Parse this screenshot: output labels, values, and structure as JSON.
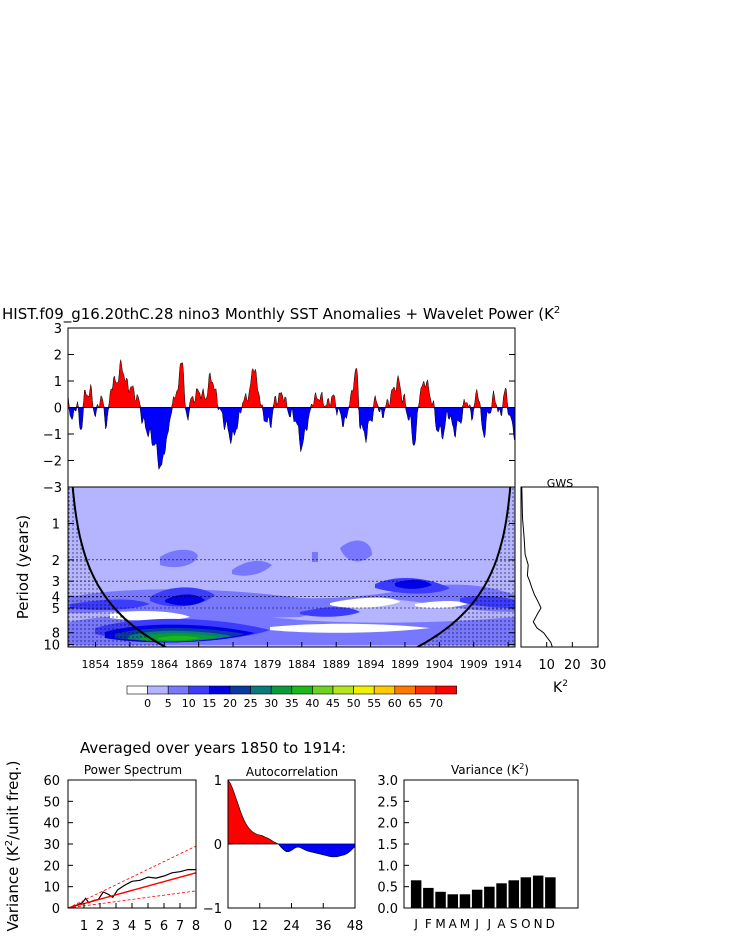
{
  "title": "HIST.f09_g16.20thC.28 nino3 Monthly SST Anomalies + Wavelet Power (K",
  "title_sup": "2",
  "subtitle": "Averaged over years 1850 to 1914:",
  "colors": {
    "pos": "#ff0000",
    "neg": "#0000ff"
  },
  "chart_data": [
    {
      "id": "timeseries",
      "type": "area",
      "ylim": [
        -3,
        3
      ],
      "yticks": [
        "3",
        "2",
        "1",
        "0",
        "−1",
        "−2",
        "−3"
      ],
      "x_range": [
        1850,
        1915
      ],
      "series_anchors": [
        [
          1850,
          0.3
        ],
        [
          1850.6,
          -0.5
        ],
        [
          1851.3,
          0.2
        ],
        [
          1851.8,
          -0.9
        ],
        [
          1852.5,
          0.5
        ],
        [
          1853.3,
          0.6
        ],
        [
          1854,
          -0.3
        ],
        [
          1854.8,
          0.4
        ],
        [
          1855.6,
          -0.6
        ],
        [
          1856.4,
          0.9
        ],
        [
          1857.1,
          1.0
        ],
        [
          1857.8,
          1.6
        ],
        [
          1858.5,
          0.9
        ],
        [
          1859.3,
          0.7
        ],
        [
          1860.2,
          0.3
        ],
        [
          1861,
          -0.6
        ],
        [
          1861.8,
          -1.0
        ],
        [
          1862.6,
          -1.4
        ],
        [
          1863.5,
          -2.3
        ],
        [
          1864.3,
          -1.3
        ],
        [
          1865.2,
          0.1
        ],
        [
          1866,
          0.8
        ],
        [
          1866.6,
          1.9
        ],
        [
          1867.2,
          -0.4
        ],
        [
          1868,
          0.3
        ],
        [
          1869,
          0.6
        ],
        [
          1870,
          0.4
        ],
        [
          1870.8,
          1.2
        ],
        [
          1871.5,
          0.5
        ],
        [
          1872.2,
          -0.2
        ],
        [
          1873,
          -0.7
        ],
        [
          1873.8,
          -1.2
        ],
        [
          1874.6,
          -0.7
        ],
        [
          1875.4,
          0.2
        ],
        [
          1876.3,
          0.5
        ],
        [
          1877,
          1.6
        ],
        [
          1877.7,
          0.6
        ],
        [
          1878.5,
          -0.4
        ],
        [
          1879.4,
          -0.6
        ],
        [
          1880.2,
          0.3
        ],
        [
          1881.2,
          0.5
        ],
        [
          1882.2,
          -0.2
        ],
        [
          1883,
          -0.4
        ],
        [
          1884,
          -1.5
        ],
        [
          1884.8,
          -0.6
        ],
        [
          1885.7,
          0.3
        ],
        [
          1886.6,
          0.4
        ],
        [
          1887.6,
          0.1
        ],
        [
          1888.5,
          0.4
        ],
        [
          1889.4,
          -0.2
        ],
        [
          1890.2,
          -0.6
        ],
        [
          1891.1,
          0.3
        ],
        [
          1891.9,
          1.5
        ],
        [
          1892.5,
          -0.6
        ],
        [
          1893.2,
          -1.1
        ],
        [
          1894,
          -0.5
        ],
        [
          1894.8,
          0.3
        ],
        [
          1895.6,
          -0.3
        ],
        [
          1896.4,
          0.1
        ],
        [
          1897.2,
          0.6
        ],
        [
          1898,
          1.0
        ],
        [
          1898.8,
          0.3
        ],
        [
          1899.6,
          -0.4
        ],
        [
          1900.4,
          -1.4
        ],
        [
          1901.2,
          0.6
        ],
        [
          1902,
          1.0
        ],
        [
          1902.9,
          0.3
        ],
        [
          1903.7,
          -0.8
        ],
        [
          1904.5,
          -1.0
        ],
        [
          1905.3,
          -0.2
        ],
        [
          1906.2,
          -0.9
        ],
        [
          1907,
          -0.5
        ],
        [
          1907.9,
          0.3
        ],
        [
          1908.7,
          -0.3
        ],
        [
          1909.6,
          0.6
        ],
        [
          1910.4,
          -1.0
        ],
        [
          1911.2,
          -0.2
        ],
        [
          1912,
          0.4
        ],
        [
          1912.8,
          -0.3
        ],
        [
          1913.6,
          0.6
        ],
        [
          1914.4,
          -0.5
        ],
        [
          1915,
          -1.0
        ]
      ]
    },
    {
      "id": "wavelet",
      "type": "heatmap",
      "ylabel": "Period (years)",
      "yticks": [
        "1",
        "2",
        "3",
        "4",
        "5",
        "8",
        "10"
      ],
      "ytick_values": [
        1,
        2,
        3,
        4,
        5,
        8,
        10
      ],
      "xticks": [
        "1854",
        "1859",
        "1864",
        "1869",
        "1874",
        "1879",
        "1884",
        "1889",
        "1894",
        "1899",
        "1904",
        "1909",
        "1914"
      ],
      "xtick_values": [
        1854,
        1859,
        1864,
        1869,
        1874,
        1879,
        1884,
        1889,
        1894,
        1899,
        1904,
        1909,
        1914
      ],
      "x_range": [
        1850,
        1915
      ],
      "period_range": [
        0.5,
        10.5
      ],
      "levels": [
        0,
        5,
        10,
        15,
        20,
        25,
        30,
        35,
        40,
        45,
        50,
        55,
        60,
        65,
        70
      ],
      "level_labels": [
        "0",
        "5",
        "10",
        "15",
        "20",
        "25",
        "30",
        "35",
        "40",
        "45",
        "50",
        "55",
        "60",
        "65",
        "70"
      ],
      "level_colors": [
        "#ffffff",
        "#b4b4ff",
        "#7878ff",
        "#3c3cff",
        "#0000e6",
        "#0a3aa0",
        "#0a7a7a",
        "#0a9a3a",
        "#1ab81a",
        "#6ed21e",
        "#b4e61e",
        "#f0f000",
        "#ffc800",
        "#ff7800",
        "#ff3000",
        "#ff0000"
      ]
    },
    {
      "id": "gws",
      "type": "line",
      "title": "GWS",
      "xlabel": "K",
      "xlabel_sup": "2",
      "xticks": [
        "10",
        "20",
        "30"
      ],
      "xlim": [
        0,
        30
      ],
      "period": [
        0.5,
        0.9,
        1.3,
        1.8,
        2.2,
        2.7,
        3.0,
        3.4,
        3.9,
        4.4,
        5.0,
        5.6,
        6.5,
        7.3,
        8.0,
        8.8,
        9.6,
        10.5
      ],
      "power": [
        0.3,
        0.6,
        1.2,
        1.6,
        2.8,
        2.5,
        3.4,
        4.2,
        5.3,
        6.6,
        7.8,
        6.4,
        4.8,
        6.2,
        8.8,
        10.2,
        11.6,
        12.2
      ]
    },
    {
      "id": "power_spectrum",
      "type": "line",
      "title": "Power Spectrum",
      "ylabel": "Variance (K",
      "ylabel_sup": "2",
      "ylabel_tail": "/unit freq.)",
      "xticks": [
        "1",
        "2",
        "3",
        "4",
        "5",
        "6",
        "7",
        "8"
      ],
      "yticks": [
        "60",
        "50",
        "40",
        "30",
        "20",
        "10",
        "0"
      ],
      "xlim": [
        0,
        8
      ],
      "ylim": [
        0,
        60
      ],
      "series": [
        {
          "x": [
            0.2,
            0.6,
            0.9,
            1.1,
            1.3,
            1.6,
            1.9,
            2.2,
            2.5,
            2.8,
            3.1,
            3.5,
            4,
            4.5,
            5,
            5.5,
            6,
            6.5,
            7,
            7.5,
            8
          ],
          "y": [
            0.5,
            1.5,
            2.5,
            4.5,
            2.5,
            3.5,
            4,
            7.5,
            6.5,
            5,
            8.5,
            10.5,
            12.5,
            13,
            14.5,
            14,
            15,
            16.5,
            17,
            18,
            18
          ]
        },
        {
          "x": [
            0,
            8
          ],
          "y": [
            0,
            16.5
          ]
        },
        {
          "x": [
            0,
            8
          ],
          "y": [
            0,
            29
          ]
        },
        {
          "x": [
            0,
            8
          ],
          "y": [
            0,
            8
          ]
        }
      ]
    },
    {
      "id": "autocorrelation",
      "type": "area",
      "title": "Autocorrelation",
      "xticks": [
        "0",
        "12",
        "24",
        "36",
        "48"
      ],
      "yticks": [
        "1",
        "0",
        "−1"
      ],
      "xlim": [
        0,
        48
      ],
      "ylim": [
        -1,
        1
      ],
      "lag": [
        0,
        1,
        2,
        3,
        4,
        5,
        6,
        7,
        8,
        9,
        10,
        11,
        12,
        13,
        14,
        15,
        16,
        17,
        18,
        19,
        20,
        21,
        22,
        23,
        24,
        25,
        26,
        27,
        28,
        29,
        30,
        31,
        32,
        33,
        34,
        35,
        36,
        37,
        38,
        39,
        40,
        41,
        42,
        43,
        44,
        45,
        46,
        47,
        48
      ],
      "r": [
        1.0,
        0.94,
        0.84,
        0.72,
        0.6,
        0.48,
        0.38,
        0.3,
        0.24,
        0.2,
        0.17,
        0.15,
        0.14,
        0.13,
        0.11,
        0.09,
        0.07,
        0.04,
        0.02,
        0.0,
        -0.05,
        -0.09,
        -0.12,
        -0.12,
        -0.1,
        -0.07,
        -0.05,
        -0.05,
        -0.07,
        -0.09,
        -0.11,
        -0.12,
        -0.13,
        -0.14,
        -0.15,
        -0.16,
        -0.17,
        -0.18,
        -0.19,
        -0.2,
        -0.2,
        -0.2,
        -0.19,
        -0.18,
        -0.17,
        -0.15,
        -0.12,
        -0.08,
        -0.04
      ]
    },
    {
      "id": "variance",
      "type": "bar",
      "title": "Variance (K",
      "title_sup": "2",
      "title_tail": ")",
      "categories": [
        "J",
        "F",
        "M",
        "A",
        "M",
        "J",
        "J",
        "A",
        "S",
        "O",
        "N",
        "D"
      ],
      "values": [
        0.65,
        0.47,
        0.38,
        0.32,
        0.32,
        0.43,
        0.5,
        0.58,
        0.65,
        0.72,
        0.76,
        0.72
      ],
      "yticks": [
        "3.0",
        "2.5",
        "2.0",
        "1.5",
        "1.0",
        "0.5",
        "0.0"
      ],
      "ylim": [
        0,
        3
      ]
    }
  ]
}
